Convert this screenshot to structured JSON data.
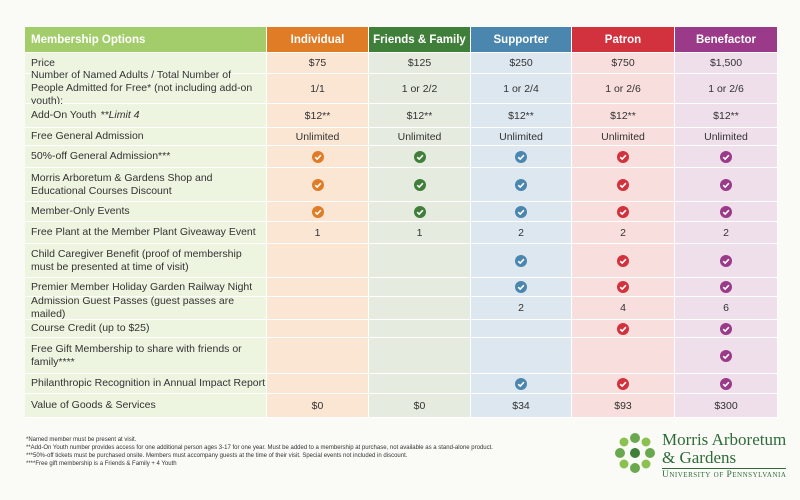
{
  "table": {
    "header_label": "Membership Options",
    "columns": [
      {
        "name": "Individual",
        "color": "#e07b26",
        "tint": "#fbe6d4"
      },
      {
        "name": "Friends & Family",
        "color": "#3f7f3a",
        "tint": "#e5ecdf"
      },
      {
        "name": "Supporter",
        "color": "#4a86ad",
        "tint": "#dde7ef"
      },
      {
        "name": "Patron",
        "color": "#d2323d",
        "tint": "#f8dedd"
      },
      {
        "name": "Benefactor",
        "color": "#9a3a88",
        "tint": "#eedfeb"
      }
    ],
    "header_color": "#a3cd6b",
    "label_tint": "#edf4e0",
    "rows": [
      {
        "label": "Price",
        "cells": [
          "$75",
          "$125",
          "$250",
          "$750",
          "$1,500"
        ]
      },
      {
        "label": "Number of Named Adults / Total Number of People Admitted for Free* (not including add-on youth):",
        "cells": [
          "1/1",
          "1 or 2/2",
          "1 or 2/4",
          "1 or 2/6",
          "1 or 2/6"
        ]
      },
      {
        "label": "Add-On Youth",
        "note": "**Limit 4",
        "cells": [
          "$12**",
          "$12**",
          "$12**",
          "$12**",
          "$12**"
        ]
      },
      {
        "label": "Free General Admission",
        "cells": [
          "Unlimited",
          "Unlimited",
          "Unlimited",
          "Unlimited",
          "Unlimited"
        ]
      },
      {
        "label": "50%-off General Admission***",
        "cells": [
          true,
          true,
          true,
          true,
          true
        ]
      },
      {
        "label": "Morris Arboretum & Gardens Shop and Educational Courses Discount",
        "cells": [
          true,
          true,
          true,
          true,
          true
        ]
      },
      {
        "label": "Member-Only Events",
        "cells": [
          true,
          true,
          true,
          true,
          true
        ]
      },
      {
        "label": "Free Plant at the Member Plant Giveaway Event",
        "cells": [
          "1",
          "1",
          "2",
          "2",
          "2"
        ]
      },
      {
        "label": "Child Caregiver Benefit (proof of membership must be presented at time of visit)",
        "cells": [
          null,
          null,
          true,
          true,
          true
        ]
      },
      {
        "label": "Premier Member Holiday Garden Railway Night",
        "cells": [
          null,
          null,
          true,
          true,
          true
        ]
      },
      {
        "label": "Admission Guest Passes (guest passes are mailed)",
        "cells": [
          null,
          null,
          "2",
          "4",
          "6"
        ]
      },
      {
        "label": "Course Credit (up to $25)",
        "cells": [
          null,
          null,
          null,
          true,
          true
        ]
      },
      {
        "label": "Free Gift Membership to share with friends or family****",
        "cells": [
          null,
          null,
          null,
          null,
          true
        ]
      },
      {
        "label": "Philanthropic Recognition in Annual Impact Report",
        "cells": [
          null,
          null,
          true,
          true,
          true
        ]
      },
      {
        "label": "Value of Goods & Services",
        "cells": [
          "$0",
          "$0",
          "$34",
          "$93",
          "$300"
        ]
      }
    ]
  },
  "footnotes": [
    "*Named member must be present at visit.",
    "**Add-On Youth number provides access for one additional person ages 3-17 for one year. Must be added to a membership at purchase, not available as a stand-alone product.",
    "***50%-off tickets must be purchased onsite. Members must accompany guests at the time of their visit. Special events not included in discount.",
    "****Free gift membership is a Friends & Family + 4 Youth"
  ],
  "logo": {
    "line1": "Morris Arboretum",
    "line2": "& Gardens",
    "university": "University of Pennsylvania"
  }
}
